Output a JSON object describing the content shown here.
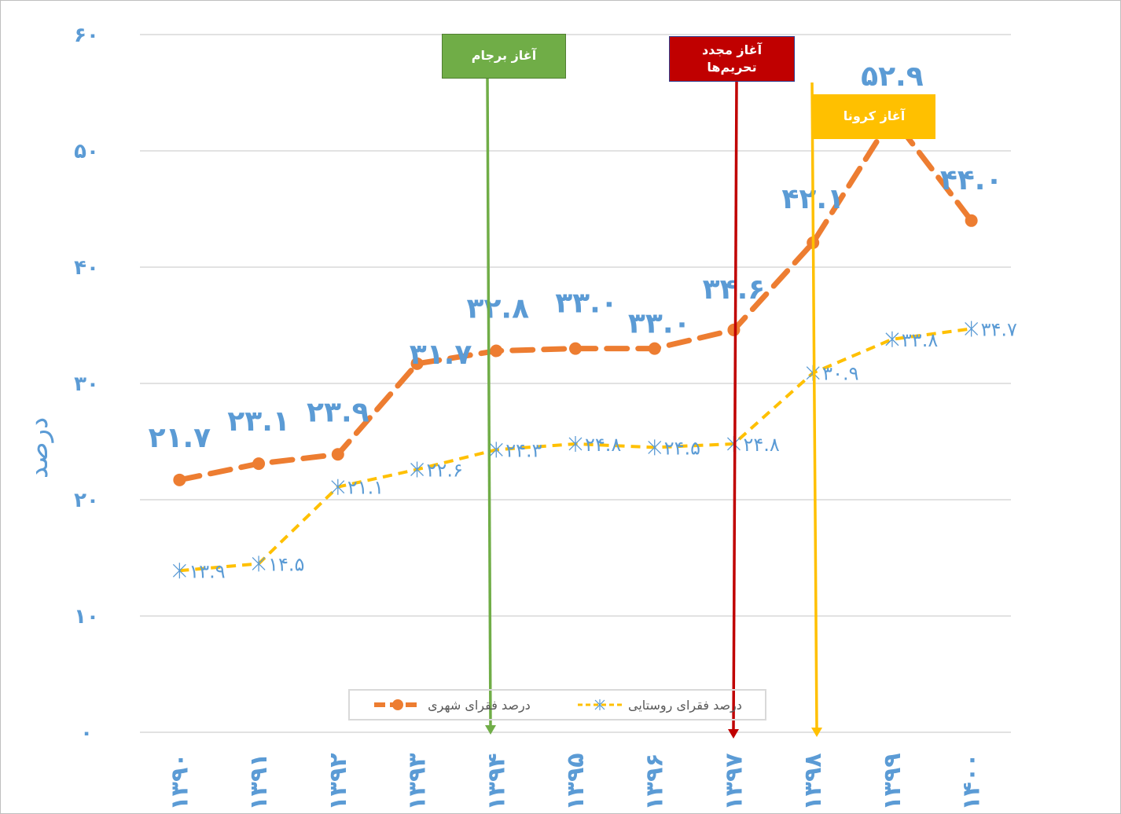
{
  "chart_data": {
    "type": "line",
    "title": "",
    "xlabel": "",
    "ylabel": "درصد",
    "ylim": [
      0,
      60
    ],
    "yticks": [
      0,
      10,
      20,
      30,
      40,
      50,
      60
    ],
    "ytick_labels": [
      "۰",
      "۱۰",
      "۲۰",
      "۳۰",
      "۴۰",
      "۵۰",
      "۶۰"
    ],
    "categories": [
      "۱۳۹۰",
      "۱۳۹۱",
      "۱۳۹۲",
      "۱۳۹۳",
      "۱۳۹۴",
      "۱۳۹۵",
      "۱۳۹۶",
      "۱۳۹۷",
      "۱۳۹۸",
      "۱۳۹۹",
      "۱۴۰۰"
    ],
    "grid": true,
    "legend_position": "bottom-center",
    "series": [
      {
        "name": "درصد فقرای شهری",
        "color": "#ed7d31",
        "values": [
          21.7,
          23.1,
          23.9,
          31.7,
          32.8,
          33.0,
          33.0,
          34.6,
          42.1,
          52.9,
          44.0
        ],
        "labels": [
          "۲۱.۷",
          "۲۳.۱",
          "۲۳.۹",
          "۳۱.۷",
          "۳۲.۸",
          "۳۳.۰",
          "۳۳.۰",
          "۳۴.۶",
          "۴۲.۱",
          "۵۲.۹",
          "۴۴.۰"
        ]
      },
      {
        "name": "درصد فقرای روستایی",
        "color": "#ffc000",
        "values": [
          13.9,
          14.5,
          21.1,
          22.6,
          24.3,
          24.8,
          24.5,
          24.8,
          30.9,
          33.8,
          34.7
        ],
        "labels": [
          "۱۳.۹",
          "۱۴.۵",
          "۲۱.۱",
          "۲۲.۶",
          "۲۴.۳",
          "۲۴.۸",
          "۲۴.۵",
          "۲۴.۸",
          "۳۰.۹",
          "۳۳.۸",
          "۳۴.۷"
        ]
      }
    ],
    "annotations": [
      {
        "text": "آغاز برجام",
        "category": "۱۳۹۴",
        "color": "#70ad47"
      },
      {
        "text": "آغاز مجدد تحریم‌ها",
        "category": "۱۳۹۷",
        "color": "#c00000"
      },
      {
        "text": "آغاز کرونا",
        "category": "۱۳۹۸",
        "color": "#ffc000"
      }
    ]
  }
}
